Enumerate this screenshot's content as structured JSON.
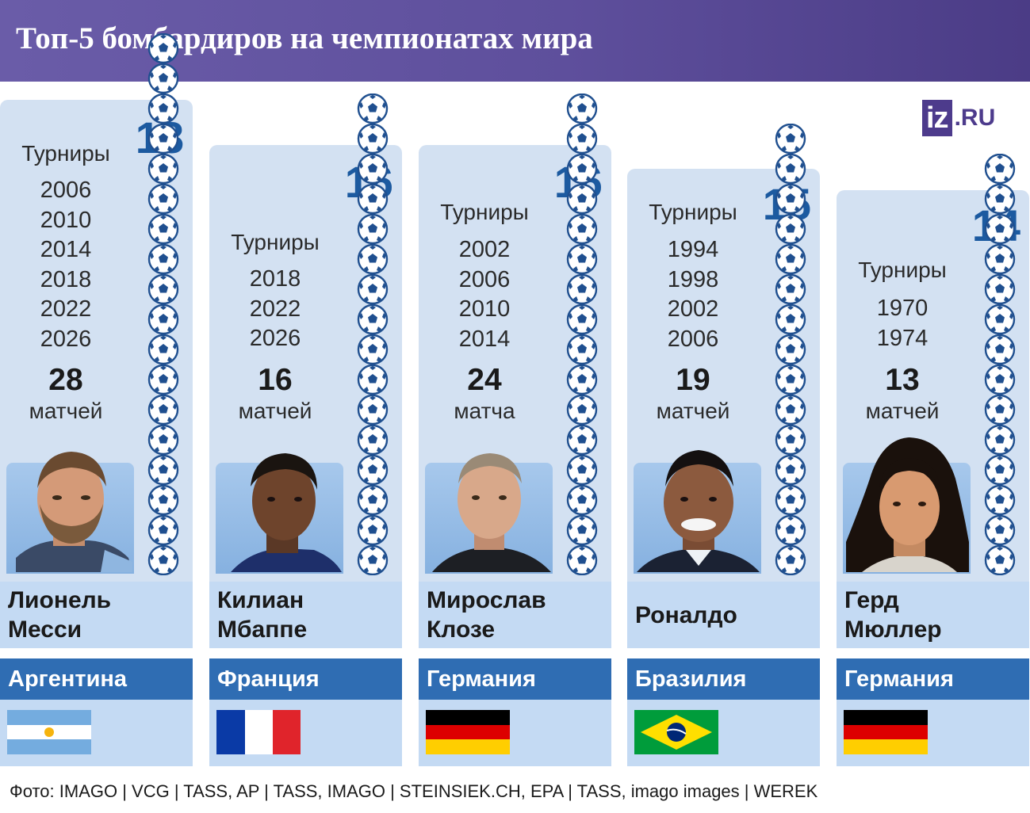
{
  "header": {
    "title": "Топ-5 бомбардиров на чемпионатах мира"
  },
  "logo": {
    "box": "iz",
    "text": ".RU"
  },
  "chart_data": {
    "type": "bar",
    "title": "Топ-5 бомбардиров на чемпионатах мира",
    "categories": [
      "Лионель Месси",
      "Килиан Мбаппе",
      "Мирослав Клозе",
      "Роналдо",
      "Герд Мюллер"
    ],
    "values": [
      18,
      16,
      16,
      15,
      14
    ],
    "players": [
      {
        "name_line1": "Лионель",
        "name_line2": "Месси",
        "country": "Аргентина",
        "goals": "18",
        "tournaments_label": "Турниры",
        "years": [
          "2006",
          "2010",
          "2014",
          "2018",
          "2022",
          "2026"
        ],
        "matches": "28",
        "matches_label": "матчей"
      },
      {
        "name_line1": "Килиан",
        "name_line2": "Мбаппе",
        "country": "Франция",
        "goals": "16",
        "tournaments_label": "Турниры",
        "years": [
          "2018",
          "2022",
          "2026"
        ],
        "matches": "16",
        "matches_label": "матчей"
      },
      {
        "name_line1": "Мирослав",
        "name_line2": "Клозе",
        "country": "Германия",
        "goals": "16",
        "tournaments_label": "Турниры",
        "years": [
          "2002",
          "2006",
          "2010",
          "2014"
        ],
        "matches": "24",
        "matches_label": "матча"
      },
      {
        "name_line1": "Роналдо",
        "name_line2": "",
        "country": "Бразилия",
        "goals": "15",
        "tournaments_label": "Турниры",
        "years": [
          "1994",
          "1998",
          "2002",
          "2006"
        ],
        "matches": "19",
        "matches_label": "матчей"
      },
      {
        "name_line1": "Герд",
        "name_line2": "Мюллер",
        "country": "Германия",
        "goals": "14",
        "tournaments_label": "Турниры",
        "years": [
          "1970",
          "1974"
        ],
        "matches": "13",
        "matches_label": "матчей"
      }
    ]
  },
  "colors": {
    "accent": "#1c5aa0",
    "header": "#5e4f9c",
    "panel": "#d3e1f2",
    "countrybar": "#2f6db3"
  },
  "footer": {
    "credits": "Фото: IMAGO | VCG | TASS, AP | TASS, IMAGO | STEINSIEK.CH, EPA | TASS, imago images | WEREK"
  }
}
